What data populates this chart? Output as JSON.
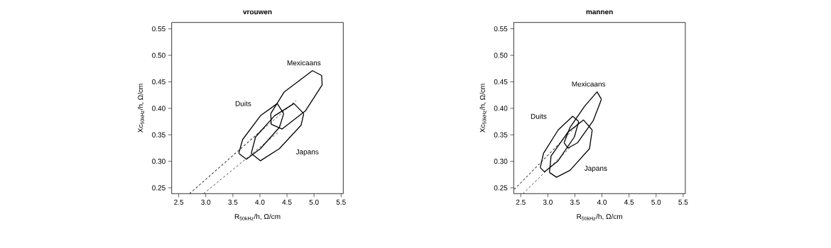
{
  "chart_data": [
    {
      "type": "line",
      "title": "vrouwen",
      "xlabel": "R$_{50kHz}$/h, Ω/cm",
      "ylabel": "Xc$_{50kHz}$/h, Ω/cm",
      "xlim": [
        2.37,
        5.54
      ],
      "ylim": [
        0.239,
        0.562
      ],
      "xticks": [
        2.5,
        {
          "value": 3,
          "label": "3.0"
        },
        3.5,
        {
          "value": 4,
          "label": "4.0"
        },
        4.5,
        {
          "value": 5,
          "label": "5.0"
        },
        5.5
      ],
      "yticks": [
        0.25,
        {
          "value": 0.3,
          "label": "0.30"
        },
        0.35,
        {
          "value": 0.4,
          "label": "0.40"
        },
        0.45,
        {
          "value": 0.5,
          "label": "0.50"
        },
        0.55
      ],
      "series": [
        {
          "color": "#000000",
          "line_style": "solid",
          "x": [
            4.2,
            4.45,
            4.97,
            5.14,
            5.15
          ],
          "values": [
            0.39,
            0.431,
            0.471,
            0.462,
            0.444
          ]
        },
        {
          "color": "#000000",
          "line_style": "solid",
          "x": [
            3.61,
            3.68,
            4.01,
            4.32,
            4.44
          ],
          "values": [
            0.315,
            0.341,
            0.386,
            0.409,
            0.39
          ]
        },
        {
          "color": "#000000",
          "line_style": "solid",
          "x": [
            3.84,
            3.92,
            4.27,
            4.63,
            4.81
          ],
          "values": [
            0.315,
            0.346,
            0.386,
            0.409,
            0.39
          ]
        },
        {
          "color": "#000000",
          "line_style": "solid",
          "x": [
            4.2,
            4.21,
            4.41,
            4.84,
            5.15
          ],
          "values": [
            0.39,
            0.37,
            0.361,
            0.395,
            0.444
          ]
        },
        {
          "color": "#000000",
          "line_style": "solid",
          "x": [
            3.61,
            3.75,
            4.01,
            4.36,
            4.44
          ],
          "values": [
            0.315,
            0.304,
            0.324,
            0.364,
            0.39
          ]
        },
        {
          "color": "#000000",
          "line_style": "solid",
          "x": [
            3.84,
            4.01,
            4.36,
            4.76,
            4.81
          ],
          "values": [
            0.315,
            0.301,
            0.324,
            0.368,
            0.39
          ]
        },
        {
          "color": "#000000",
          "line_style": "dashed",
          "x": [
            2.7,
            4.67
          ],
          "values": [
            0.239,
            0.415
          ]
        },
        {
          "color": "#000000",
          "line_style": "dashed",
          "x": [
            2.7,
            4.03
          ],
          "values": [
            0.239,
            0.359
          ]
        },
        {
          "color": "#000000",
          "line_style": "dashed",
          "x": [
            2.96,
            4.34
          ],
          "values": [
            0.239,
            0.355
          ]
        }
      ],
      "annotations": [
        "Mexicaans",
        "Duits",
        "Japans"
      ]
    },
    {
      "type": "line",
      "title": "mannen",
      "xlabel": "R$_{50kHz}$/h, Ω/cm",
      "ylabel": "Xc$_{50kHz}$/h, Ω/cm",
      "xlim": [
        2.37,
        5.54
      ],
      "ylim": [
        0.239,
        0.562
      ],
      "xticks": [
        2.5,
        {
          "value": 3,
          "label": "3.0"
        },
        3.5,
        {
          "value": 4,
          "label": "4.0"
        },
        4.5,
        {
          "value": 5,
          "label": "5.0"
        },
        5.5
      ],
      "yticks": [
        0.25,
        {
          "value": 0.3,
          "label": "0.30"
        },
        0.35,
        {
          "value": 0.4,
          "label": "0.40"
        },
        0.45,
        {
          "value": 0.5,
          "label": "0.50"
        },
        0.55
      ],
      "series": [
        {
          "color": "#000000",
          "line_style": "solid",
          "x": [
            3.3,
            3.41,
            3.68,
            3.91,
            3.99
          ],
          "values": [
            0.335,
            0.364,
            0.404,
            0.431,
            0.417
          ]
        },
        {
          "color": "#000000",
          "line_style": "solid",
          "x": [
            2.86,
            2.92,
            3.19,
            3.46,
            3.57
          ],
          "values": [
            0.288,
            0.315,
            0.359,
            0.385,
            0.375
          ]
        },
        {
          "color": "#000000",
          "line_style": "solid",
          "x": [
            3.03,
            3.06,
            3.37,
            3.66,
            3.82
          ],
          "values": [
            0.279,
            0.31,
            0.355,
            0.378,
            0.359
          ]
        },
        {
          "color": "#000000",
          "line_style": "solid",
          "x": [
            3.3,
            3.37,
            3.55,
            3.84,
            3.99
          ],
          "values": [
            0.335,
            0.325,
            0.335,
            0.377,
            0.417
          ]
        },
        {
          "color": "#000000",
          "line_style": "solid",
          "x": [
            2.86,
            2.94,
            3.19,
            3.49,
            3.57
          ],
          "values": [
            0.288,
            0.28,
            0.301,
            0.346,
            0.375
          ]
        },
        {
          "color": "#000000",
          "line_style": "solid",
          "x": [
            3.03,
            3.16,
            3.41,
            3.77,
            3.82
          ],
          "values": [
            0.279,
            0.27,
            0.283,
            0.324,
            0.359
          ]
        },
        {
          "color": "#000000",
          "line_style": "dashed",
          "x": [
            2.38,
            3.61
          ],
          "values": [
            0.247,
            0.375
          ]
        },
        {
          "color": "#000000",
          "line_style": "dashed",
          "x": [
            2.38,
            3.21
          ],
          "values": [
            0.247,
            0.333
          ]
        },
        {
          "color": "#000000",
          "line_style": "dashed",
          "x": [
            2.54,
            3.41
          ],
          "values": [
            0.239,
            0.326
          ]
        }
      ],
      "annotations": [
        "Mexicaans",
        "Duits",
        "Japans"
      ]
    }
  ]
}
